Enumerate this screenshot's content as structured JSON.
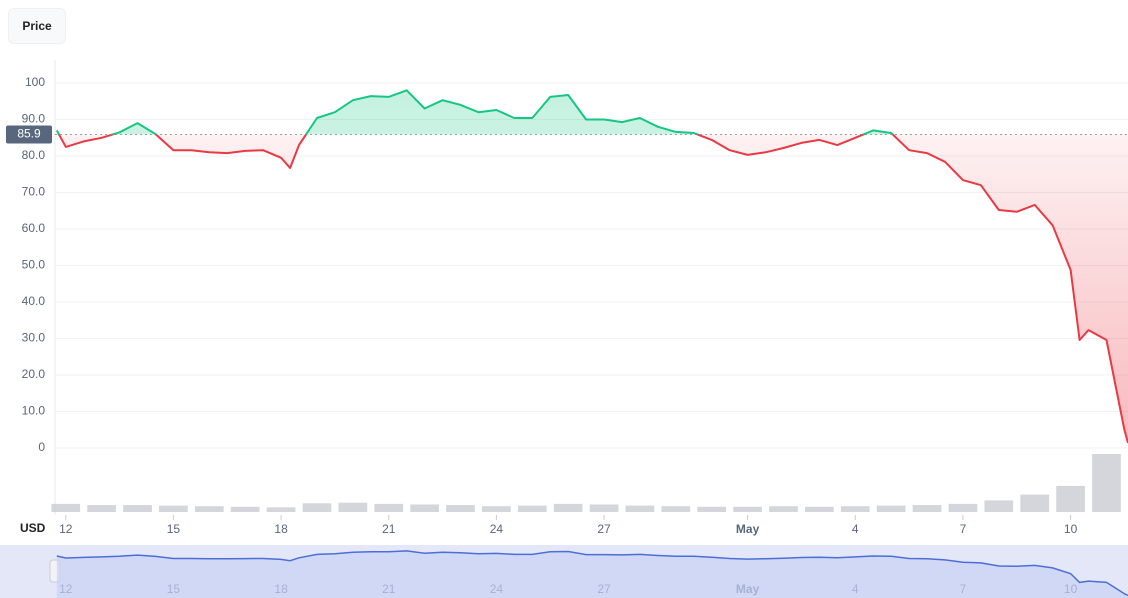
{
  "button": "Price",
  "chart_data": {
    "type": "line",
    "yaxis_label": "USD",
    "ylim": [
      0,
      100
    ],
    "yticks": [
      0,
      {
        "value": 10,
        "label": "10.0"
      },
      {
        "value": 20,
        "label": "20.0"
      },
      {
        "value": 30,
        "label": "30.0"
      },
      {
        "value": 40,
        "label": "40.0"
      },
      {
        "value": 50,
        "label": "50.0"
      },
      {
        "value": 60,
        "label": "60.0"
      },
      {
        "value": 70,
        "label": "70.0"
      },
      {
        "value": 80,
        "label": "80.0"
      },
      {
        "value": 90,
        "label": "90.0"
      },
      100
    ],
    "xlim": [
      11.7,
      41.6
    ],
    "xticks": [
      12,
      15,
      18,
      21,
      24,
      27,
      {
        "value": 31,
        "label": "May"
      },
      {
        "value": 34,
        "label": "4"
      },
      {
        "value": 37,
        "label": "7"
      },
      {
        "value": 40,
        "label": "10"
      }
    ],
    "baseline": 85.9,
    "grid": true,
    "up_color": "#16c784",
    "down_color": "#ea3943",
    "navigator_color": "#4a6fd6",
    "x": [
      11.75,
      12,
      12.5,
      13,
      13.5,
      14,
      14.5,
      15,
      15.5,
      16,
      16.5,
      17,
      17.5,
      18,
      18.25,
      18.5,
      19,
      19.5,
      20,
      20.5,
      21,
      21.5,
      22,
      22.5,
      23,
      23.5,
      24,
      24.5,
      25,
      25.5,
      26,
      26.5,
      27,
      27.5,
      28,
      28.5,
      29,
      29.5,
      30,
      30.5,
      31,
      31.5,
      32,
      32.5,
      33,
      33.5,
      34,
      34.5,
      35,
      35.5,
      36,
      36.5,
      37,
      37.5,
      38,
      38.5,
      39,
      39.5,
      40,
      40.25,
      40.5,
      41,
      41.25,
      41.5,
      41.6
    ],
    "values": [
      87,
      82.5,
      84,
      85,
      86.5,
      89,
      86,
      81.6,
      81.6,
      81,
      80.8,
      81.4,
      81.6,
      79.5,
      76.7,
      83,
      90.4,
      92,
      95.3,
      96.4,
      96.2,
      98,
      93,
      95.3,
      94,
      92,
      92.6,
      90.4,
      90.4,
      96.2,
      96.7,
      90,
      90,
      89.3,
      90.4,
      88,
      86.6,
      86.3,
      84.4,
      81.6,
      80.3,
      81,
      82.2,
      83.6,
      84.4,
      83,
      85,
      87,
      86.3,
      81.6,
      80.8,
      78.4,
      73.4,
      72,
      65.2,
      64.7,
      66.6,
      61,
      48.8,
      29.6,
      32.3,
      29.6,
      17.3,
      5,
      1.4
    ],
    "volume": {
      "x": [
        12,
        13,
        14,
        15,
        16,
        17,
        18,
        19,
        20,
        21,
        22,
        23,
        24,
        25,
        26,
        27,
        28,
        29,
        30,
        31,
        32,
        33,
        34,
        35,
        36,
        37,
        38,
        39,
        40,
        41
      ],
      "values": [
        14,
        12,
        12,
        11,
        10,
        9,
        8,
        15,
        16,
        14,
        13,
        12,
        10,
        11,
        14,
        13,
        11,
        10,
        9,
        9,
        10,
        9,
        10,
        11,
        12,
        14,
        20,
        30,
        45,
        100
      ],
      "color": "#c9ccd3"
    }
  }
}
